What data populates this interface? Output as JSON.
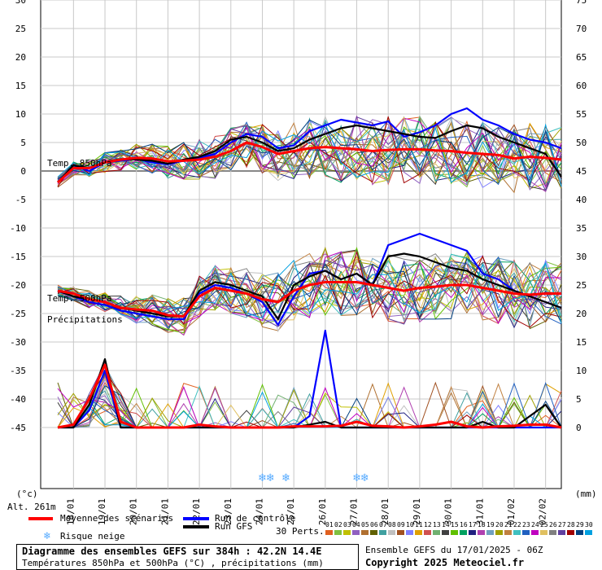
{
  "chart_data": {
    "type": "line",
    "title": "Diagramme des ensembles GEFS sur 384h : 42.2N 14.4E",
    "subtitle": "Températures 850hPa et 500hPa (°C) , précipitations (mm)",
    "y_left": {
      "label": "(°c)",
      "ticks": [
        30,
        25,
        20,
        15,
        10,
        5,
        0,
        -5,
        -10,
        -15,
        -20,
        -25,
        -30,
        -35,
        -40,
        -45
      ],
      "range": [
        -45,
        30
      ]
    },
    "y_right": {
      "label": "(mm)",
      "ticks": [
        75,
        70,
        65,
        60,
        55,
        50,
        45,
        40,
        35,
        30,
        25,
        20,
        15,
        10,
        5,
        0
      ],
      "range": [
        0,
        75
      ]
    },
    "x_ticks": [
      "18/01",
      "19/01",
      "20/01",
      "21/01",
      "22/01",
      "23/01",
      "24/01",
      "25/01",
      "26/01",
      "27/01",
      "28/01",
      "29/01",
      "30/01",
      "31/01",
      "01/02",
      "02/02"
    ],
    "altitude": "Alt. 261m",
    "annotations": {
      "t850": "Temp. 850hPa",
      "t500": "Temp. 500hPa",
      "precip": "Précipitations"
    },
    "x_hours": [
      0,
      12,
      24,
      36,
      48,
      60,
      72,
      84,
      96,
      108,
      120,
      132,
      144,
      156,
      168,
      180,
      192,
      204,
      216,
      228,
      240,
      252,
      264,
      276,
      288,
      300,
      312,
      324,
      336,
      348,
      360,
      372,
      384
    ],
    "series": [
      {
        "name": "Moyenne des scénarios",
        "group": "t850",
        "values": [
          -2,
          0.5,
          0.5,
          1.5,
          2,
          2.3,
          2.2,
          1.7,
          1.8,
          2,
          2.5,
          3.5,
          5,
          4.2,
          3,
          3.5,
          4,
          4.2,
          4,
          3.8,
          3.5,
          3.7,
          3.8,
          3.8,
          3.6,
          3.5,
          3.2,
          3,
          2.8,
          2.2,
          2.5,
          2.3,
          2
        ]
      },
      {
        "name": "Run de contrôle",
        "group": "t850",
        "values": [
          -2,
          1,
          0,
          1.5,
          1.8,
          2.1,
          1.5,
          1.2,
          1.8,
          2.3,
          3,
          5,
          6.5,
          6,
          4,
          4.5,
          7,
          8,
          9,
          8.5,
          8,
          8.7,
          6,
          6.8,
          8,
          10,
          11,
          9,
          8,
          6.5,
          5.5,
          5,
          4
        ]
      },
      {
        "name": "Run GFS",
        "group": "t850",
        "values": [
          -2,
          1,
          0.5,
          1.6,
          2.1,
          2,
          1.8,
          1.3,
          2,
          2.5,
          3.5,
          5.5,
          6,
          5,
          3.5,
          4,
          5.5,
          6.5,
          7.5,
          8,
          7.5,
          7,
          6.5,
          6,
          5.8,
          7,
          8,
          7.5,
          6,
          5,
          4,
          3,
          -1
        ]
      },
      {
        "name": "Moyenne des scénarios",
        "group": "t500",
        "values": [
          -21,
          -21.5,
          -22.5,
          -23,
          -24,
          -24.3,
          -24.5,
          -25.3,
          -25.5,
          -22,
          -20.5,
          -21,
          -21.5,
          -22.5,
          -23,
          -21,
          -20,
          -19.5,
          -19.5,
          -19.5,
          -20,
          -20.5,
          -21,
          -20.5,
          -20.3,
          -20,
          -20,
          -20.5,
          -21,
          -21.5,
          -21.7,
          -21.5,
          -21.5
        ]
      },
      {
        "name": "Run de contrôle",
        "group": "t500",
        "values": [
          -21,
          -22,
          -23,
          -23.5,
          -24.5,
          -25,
          -25.5,
          -26,
          -26,
          -21.5,
          -20,
          -20.5,
          -21.5,
          -23,
          -27,
          -22,
          -18,
          -17.5,
          -19,
          -18,
          -20,
          -13,
          -12,
          -11,
          -12,
          -13,
          -14,
          -18,
          -19,
          -21,
          -22,
          -23,
          -24
        ]
      },
      {
        "name": "Run GFS",
        "group": "t500",
        "values": [
          -21,
          -22,
          -22.5,
          -23,
          -24,
          -24.5,
          -25,
          -25.5,
          -25.5,
          -21,
          -19.5,
          -20,
          -21,
          -22,
          -26,
          -20,
          -18.5,
          -17.5,
          -19,
          -18,
          -20,
          -15,
          -14.5,
          -15,
          -16,
          -17,
          -17.5,
          -19,
          -20,
          -21,
          -22,
          -23,
          -24
        ]
      },
      {
        "name": "Moyenne des scénarios",
        "group": "precip",
        "values": [
          0,
          0.5,
          5,
          11,
          1,
          0,
          0,
          0,
          0,
          0.5,
          0.2,
          0,
          0,
          0,
          0,
          0.2,
          0.2,
          0.2,
          0.3,
          1,
          0.3,
          0.2,
          0,
          0.2,
          0.5,
          1,
          0.2,
          0,
          0.2,
          0.3,
          0.5,
          0.5,
          0
        ]
      },
      {
        "name": "Run de contrôle",
        "group": "precip",
        "values": [
          0,
          0,
          3,
          10,
          0,
          0,
          0,
          0,
          0,
          0,
          0,
          0,
          0,
          0,
          0,
          0,
          2,
          17,
          0,
          0,
          0,
          0,
          0,
          0,
          0,
          0,
          0,
          0,
          0,
          0,
          0,
          0,
          0
        ]
      },
      {
        "name": "Run GFS",
        "group": "precip",
        "values": [
          0,
          0,
          4,
          12,
          0,
          0,
          0,
          0,
          0,
          0,
          0,
          0,
          0,
          0,
          0,
          0,
          0.5,
          1,
          0,
          0,
          0,
          0,
          0,
          0,
          0,
          0,
          0,
          1,
          0,
          0,
          2,
          4,
          0
        ]
      }
    ],
    "snow_markers_hours": [
      156,
      162,
      174,
      228,
      234
    ],
    "grid": true
  },
  "legend": {
    "mean": "Moyenne des scénarios",
    "control": "Run de contrôle",
    "gfs": "Run GFS",
    "snow": "Risque neige",
    "perts": "30 Perts.",
    "snow_glyph": "❄",
    "colors": {
      "mean": "#ff0000",
      "control": "#0000ff",
      "gfs": "#000000",
      "snow": "#55aaff"
    }
  },
  "perts": {
    "labels": [
      "01",
      "02",
      "03",
      "04",
      "05",
      "06",
      "07",
      "08",
      "09",
      "10",
      "11",
      "12",
      "13",
      "14",
      "15",
      "16",
      "17",
      "18",
      "19",
      "20",
      "21",
      "22",
      "23",
      "24",
      "25",
      "26",
      "27",
      "28",
      "29",
      "30"
    ],
    "colors": [
      "#e06020",
      "#80c040",
      "#c0c000",
      "#9060c0",
      "#b07030",
      "#606000",
      "#40a0a0",
      "#c0c0c0",
      "#a05020",
      "#8080ff",
      "#e0a000",
      "#d05050",
      "#70b070",
      "#404040",
      "#60c000",
      "#00a060",
      "#202080",
      "#b040b0",
      "#70a0c0",
      "#a0a000",
      "#c08040",
      "#40c0c0",
      "#2060c0",
      "#c000c0",
      "#e0c060",
      "#808080",
      "#6040a0",
      "#a00000",
      "#004080",
      "#00a0e0"
    ]
  },
  "footer": {
    "title": "Diagramme des ensembles GEFS sur 384h : 42.2N 14.4E",
    "subtitle": "Températures 850hPa et 500hPa (°C) , précipitations (mm)",
    "run": "Ensemble GEFS du 17/01/2025 - 06Z",
    "copyright": "Copyright 2025 Meteociel.fr"
  }
}
